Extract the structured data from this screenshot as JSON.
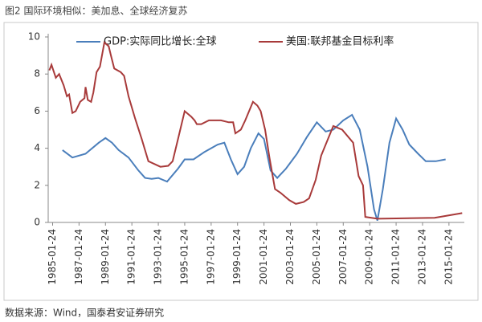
{
  "chart_data": {
    "type": "line",
    "title": "图2 国际环境相似：美加息、全球经济复苏",
    "source": "数据来源：Wind，国泰君安证券研究",
    "xlim": [
      "1984-09-24",
      "2016-03-24"
    ],
    "xticks": [
      "1985-01-24",
      "1987-01-24",
      "1989-01-24",
      "1991-01-24",
      "1993-01-24",
      "1995-01-24",
      "1997-01-24",
      "1999-01-24",
      "2001-01-24",
      "2003-01-24",
      "2005-01-24",
      "2007-01-24",
      "2009-01-24",
      "2011-01-24",
      "2013-01-24",
      "2015-01-24"
    ],
    "ylim": [
      0,
      10
    ],
    "yticks": [
      0,
      2,
      4,
      6,
      8,
      10
    ],
    "grid": false,
    "series": [
      {
        "name": "GDP:实际同比增长:全球",
        "color": "#4a7ebb",
        "x": [
          "1985-10-24",
          "1986-07-24",
          "1987-07-24",
          "1988-07-24",
          "1989-01-24",
          "1989-07-24",
          "1990-01-24",
          "1990-10-24",
          "1991-07-24",
          "1992-01-24",
          "1992-07-24",
          "1993-01-24",
          "1993-09-24",
          "1994-07-24",
          "1995-01-24",
          "1995-09-24",
          "1996-07-24",
          "1997-07-24",
          "1998-01-24",
          "1998-07-24",
          "1999-01-24",
          "1999-07-24",
          "2000-01-24",
          "2000-08-24",
          "2001-01-24",
          "2001-07-24",
          "2002-01-24",
          "2002-09-24",
          "2003-07-24",
          "2004-04-24",
          "2005-01-24",
          "2005-09-24",
          "2006-04-24",
          "2007-01-24",
          "2007-09-24",
          "2008-04-24",
          "2008-11-24",
          "2009-05-24",
          "2009-08-24",
          "2010-01-24",
          "2010-07-24",
          "2011-01-24",
          "2011-07-24",
          "2012-01-24",
          "2012-09-24",
          "2013-04-24",
          "2014-01-24",
          "2014-10-24"
        ],
        "values": [
          3.9,
          3.5,
          3.7,
          4.3,
          4.55,
          4.3,
          3.9,
          3.5,
          2.8,
          2.4,
          2.35,
          2.4,
          2.2,
          2.9,
          3.4,
          3.4,
          3.8,
          4.2,
          4.3,
          3.4,
          2.6,
          3.0,
          4.0,
          4.8,
          4.5,
          2.8,
          2.4,
          2.9,
          3.7,
          4.6,
          5.4,
          4.9,
          5.0,
          5.5,
          5.8,
          5.0,
          3.0,
          0.7,
          0.1,
          1.8,
          4.3,
          5.6,
          5.0,
          4.2,
          3.7,
          3.3,
          3.3,
          3.4
        ]
      },
      {
        "name": "美国:联邦基金目标利率",
        "color": "#a83a3a",
        "x": [
          "1984-10-24",
          "1984-12-24",
          "1985-04-24",
          "1985-07-24",
          "1985-11-24",
          "1986-02-24",
          "1986-04-24",
          "1986-07-24",
          "1986-10-24",
          "1987-02-24",
          "1987-06-24",
          "1987-07-24",
          "1987-09-24",
          "1987-12-24",
          "1988-02-24",
          "1988-05-24",
          "1988-08-24",
          "1988-12-24",
          "1989-04-24",
          "1989-06-24",
          "1989-09-24",
          "1990-03-24",
          "1990-06-24",
          "1990-10-24",
          "1991-04-24",
          "1991-10-24",
          "1992-04-24",
          "1993-03-24",
          "1993-10-24",
          "1994-02-24",
          "1994-07-24",
          "1995-01-24",
          "1995-07-24",
          "1995-10-24",
          "1995-12-24",
          "1996-04-24",
          "1996-11-24",
          "1997-10-24",
          "1998-05-24",
          "1998-09-24",
          "1998-11-24",
          "1999-04-24",
          "1999-08-24",
          "2000-03-24",
          "2000-07-24",
          "2000-10-24",
          "2001-02-24",
          "2001-06-24",
          "2001-11-24",
          "2002-04-24",
          "2002-12-24",
          "2003-06-24",
          "2004-01-24",
          "2004-06-24",
          "2004-12-24",
          "2005-05-24",
          "2006-04-24",
          "2006-12-24",
          "2007-10-24",
          "2008-03-24",
          "2008-07-24",
          "2008-09-24",
          "2009-08-24",
          "2013-12-24",
          "2016-01-24"
        ],
        "values": [
          8.2,
          8.5,
          7.8,
          8.0,
          7.4,
          6.8,
          6.9,
          5.9,
          6.0,
          6.5,
          6.7,
          7.3,
          6.6,
          6.5,
          7.0,
          8.1,
          8.4,
          9.7,
          9.5,
          9.0,
          8.3,
          8.1,
          7.9,
          6.8,
          5.6,
          4.5,
          3.3,
          3.0,
          3.05,
          3.3,
          4.5,
          6.0,
          5.7,
          5.5,
          5.3,
          5.3,
          5.5,
          5.5,
          5.4,
          5.4,
          4.8,
          5.0,
          5.5,
          6.5,
          6.3,
          6.0,
          5.0,
          3.5,
          1.8,
          1.6,
          1.2,
          1.0,
          1.1,
          1.3,
          2.3,
          3.6,
          5.2,
          5.0,
          4.3,
          2.5,
          2.0,
          0.3,
          0.2,
          0.25,
          0.5
        ]
      }
    ]
  }
}
